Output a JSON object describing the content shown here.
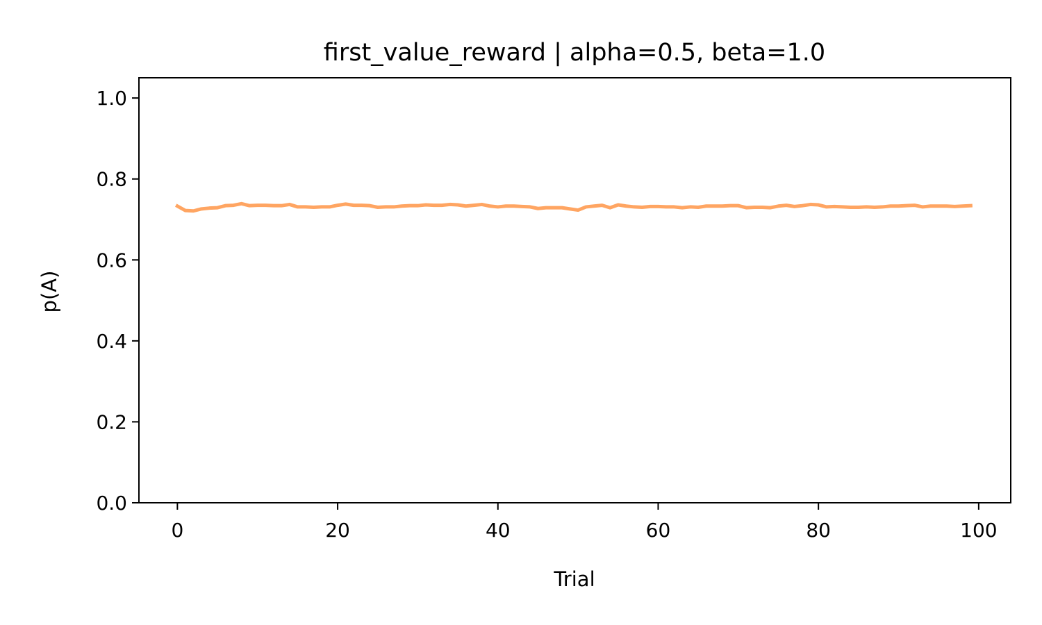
{
  "chart_data": {
    "type": "line",
    "title": "first_value_reward | alpha=0.5, beta=1.0",
    "xlabel": "Trial",
    "ylabel": "p(A)",
    "xlim": [
      -4.8,
      104
    ],
    "ylim": [
      0,
      1.05
    ],
    "xticks": [
      0,
      20,
      40,
      60,
      80,
      100
    ],
    "yticks": [
      0.0,
      0.2,
      0.4,
      0.6,
      0.8,
      1.0
    ],
    "xtick_labels": [
      "0",
      "20",
      "40",
      "60",
      "80",
      "100"
    ],
    "ytick_labels": [
      "0.0",
      "0.2",
      "0.4",
      "0.6",
      "0.8",
      "1.0"
    ],
    "grid": false,
    "legend": "none",
    "series": [
      {
        "color": "#ffa562",
        "x": [
          0,
          1,
          2,
          3,
          4,
          5,
          6,
          7,
          8,
          9,
          10,
          11,
          12,
          13,
          14,
          15,
          16,
          17,
          18,
          19,
          20,
          21,
          22,
          23,
          24,
          25,
          26,
          27,
          28,
          29,
          30,
          31,
          32,
          33,
          34,
          35,
          36,
          37,
          38,
          39,
          40,
          41,
          42,
          43,
          44,
          45,
          46,
          47,
          48,
          49,
          50,
          51,
          52,
          53,
          54,
          55,
          56,
          57,
          58,
          59,
          60,
          61,
          62,
          63,
          64,
          65,
          66,
          67,
          68,
          69,
          70,
          71,
          72,
          73,
          74,
          75,
          76,
          77,
          78,
          79,
          80,
          81,
          82,
          83,
          84,
          85,
          86,
          87,
          88,
          89,
          90,
          91,
          92,
          93,
          94,
          95,
          96,
          97,
          98,
          99
        ],
        "y": [
          0.733,
          0.722,
          0.721,
          0.726,
          0.728,
          0.729,
          0.734,
          0.735,
          0.739,
          0.734,
          0.735,
          0.735,
          0.734,
          0.734,
          0.737,
          0.731,
          0.731,
          0.73,
          0.731,
          0.731,
          0.735,
          0.738,
          0.735,
          0.735,
          0.734,
          0.73,
          0.731,
          0.731,
          0.733,
          0.734,
          0.734,
          0.736,
          0.735,
          0.735,
          0.737,
          0.736,
          0.733,
          0.735,
          0.737,
          0.733,
          0.731,
          0.733,
          0.733,
          0.732,
          0.731,
          0.727,
          0.729,
          0.729,
          0.729,
          0.726,
          0.723,
          0.731,
          0.733,
          0.735,
          0.729,
          0.736,
          0.733,
          0.731,
          0.73,
          0.732,
          0.732,
          0.731,
          0.731,
          0.729,
          0.731,
          0.73,
          0.733,
          0.733,
          0.733,
          0.734,
          0.734,
          0.729,
          0.73,
          0.73,
          0.729,
          0.733,
          0.735,
          0.732,
          0.734,
          0.737,
          0.736,
          0.731,
          0.732,
          0.731,
          0.73,
          0.73,
          0.731,
          0.73,
          0.731,
          0.733,
          0.733,
          0.734,
          0.735,
          0.731,
          0.733,
          0.733,
          0.733,
          0.732,
          0.733,
          0.734
        ]
      }
    ]
  }
}
